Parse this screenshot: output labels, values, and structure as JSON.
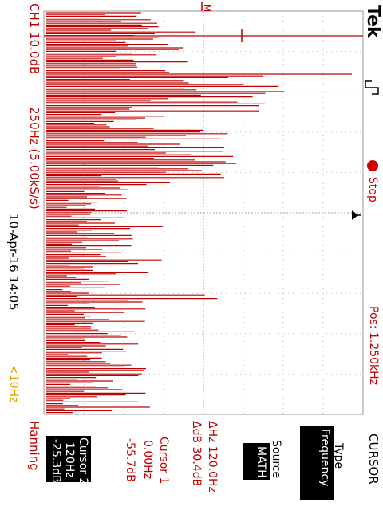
{
  "brand": "Tek",
  "trigger_status": "Stop",
  "channel_scale": "CH1 10.0dB",
  "timebase": "250Hz (5.00kS/s)",
  "position": "Pos: 1.250kHz",
  "datetime": "10-Apr-16 14:05",
  "freq_indicator": "<10Hz",
  "window_type": "Hanning",
  "delta_hz": "ΔHz 120.0Hz",
  "delta_db": "ΔdB 30.4dB",
  "cursor1": {
    "title": "Cursor 1",
    "freq": "0.00Hz",
    "level": "-55.7dB"
  },
  "cursor2": {
    "title": "Cursor 2",
    "freq": "120Hz",
    "level": "-25.3dB"
  },
  "menu": {
    "title": "CURSOR",
    "type_label": "Type",
    "type_value": "Frequency",
    "source_label": "Source",
    "source_value": "MATH"
  },
  "colors": {
    "trace": "#c00000",
    "accent_yellow": "#e8a000",
    "grid": "#b8b8b8",
    "text": "#000000"
  }
}
